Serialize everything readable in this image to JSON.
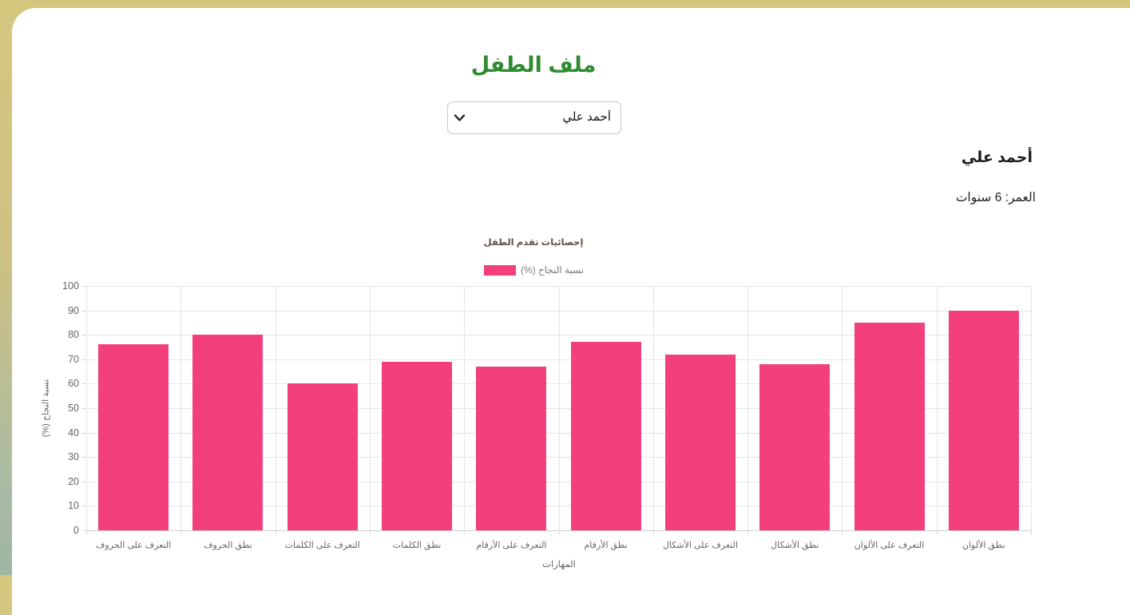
{
  "header": {
    "title": "ملف الطفل"
  },
  "select": {
    "value": "أحمد علي"
  },
  "profile": {
    "name": "أحمد علي",
    "age": "العمر: 6 سنوات"
  },
  "chart_data": {
    "type": "bar",
    "title": "إحصائيات تقدم الطفل",
    "legend_label": "نسبة النجاح (%)",
    "xlabel": "المهارات",
    "ylabel": "نسبة النجاح (%)",
    "categories": [
      "التعرف على الحروف",
      "نطق الحروف",
      "التعرف على الكلمات",
      "نطق الكلمات",
      "التعرف على الأرقام",
      "نطق الأرقام",
      "التعرف على الأشكال",
      "نطق الأشكال",
      "التعرف على الألوان",
      "نطق الألوان"
    ],
    "values": [
      76,
      80,
      60,
      69,
      67,
      77,
      72,
      68,
      85,
      90
    ],
    "ylim": [
      0,
      100
    ],
    "ytick_step": 10,
    "bar_color": "#f43f7d",
    "grid": true,
    "legend_position": "top"
  },
  "colors": {
    "title_green": "#2e8b2e",
    "bar_pink": "#f43f7d",
    "frame_gold_top": "#d6c77f",
    "frame_sage_bottom": "#9fb4a4",
    "grid_gray": "#e6e6e6",
    "tick_text": "#666666"
  }
}
